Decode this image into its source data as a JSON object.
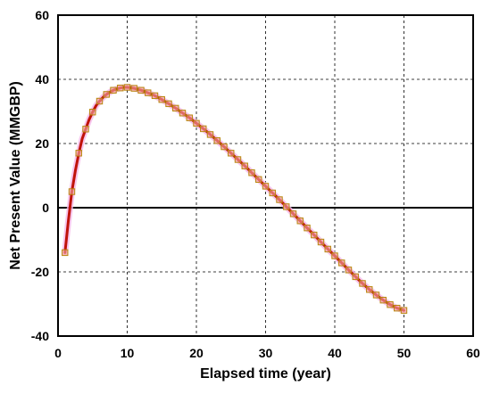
{
  "chart_data": {
    "type": "line",
    "title": "",
    "xlabel": "Elapsed time (year)",
    "ylabel": "Net Present Value (MMGBP)",
    "xlim": [
      0,
      60
    ],
    "ylim": [
      -40,
      60
    ],
    "xticks": [
      0,
      10,
      20,
      30,
      40,
      50,
      60
    ],
    "yticks": [
      -40,
      -20,
      0,
      20,
      40,
      60
    ],
    "grid": true,
    "legend": "none",
    "colors": {
      "line": "#c0120a",
      "marker_edge": "#b8860b",
      "marker_fill": "#f4a6a0",
      "halo": "#f5b8e8",
      "zero_line": "#000000",
      "grid": "#000000"
    },
    "series": [
      {
        "line_x": [
          1,
          1.5,
          2,
          2.5,
          3,
          3.5,
          4,
          4.5,
          5,
          5.5,
          6,
          6.5,
          7,
          7.5,
          8,
          8.5,
          9,
          9.5,
          10,
          10.5,
          11,
          11.5,
          12,
          12.5,
          13,
          14,
          15,
          16,
          17,
          18,
          19,
          20,
          21,
          22,
          23,
          24,
          25,
          26,
          27,
          28,
          29,
          30,
          31,
          32,
          33,
          34,
          35,
          36,
          37,
          38,
          39,
          40,
          41,
          42,
          43,
          44,
          45,
          46,
          47,
          48,
          49,
          50
        ],
        "line_y": [
          -14,
          -4,
          5,
          11.5,
          17,
          21.5,
          24.5,
          27.5,
          29.8,
          31.8,
          33.2,
          34.4,
          35.3,
          36,
          36.6,
          37,
          37.3,
          37.5,
          37.5,
          37.4,
          37.2,
          36.9,
          36.6,
          36.2,
          35.8,
          34.9,
          33.7,
          32.4,
          31,
          29.5,
          28,
          26.3,
          24.6,
          22.8,
          20.9,
          19,
          17,
          15,
          13,
          10.9,
          8.8,
          6.7,
          4.6,
          2.5,
          0.3,
          -1.9,
          -4.1,
          -6.3,
          -8.5,
          -10.7,
          -12.9,
          -15,
          -17.2,
          -19.4,
          -21.5,
          -23.6,
          -25.5,
          -27.2,
          -28.8,
          -30.2,
          -31.3,
          -32
        ],
        "marker_x": [
          1,
          2,
          3,
          4,
          5,
          6,
          7,
          8,
          9,
          10,
          11,
          12,
          13,
          14,
          15,
          16,
          17,
          18,
          19,
          20,
          21,
          22,
          23,
          24,
          25,
          26,
          27,
          28,
          29,
          30,
          31,
          32,
          33,
          34,
          35,
          36,
          37,
          38,
          39,
          40,
          41,
          42,
          43,
          44,
          45,
          46,
          47,
          48,
          49,
          50
        ],
        "marker_y": [
          -14,
          5,
          17,
          24.5,
          29.8,
          33.2,
          35.3,
          36.6,
          37.3,
          37.5,
          37.2,
          36.6,
          35.8,
          34.9,
          33.7,
          32.4,
          31,
          29.5,
          28,
          26.3,
          24.6,
          22.8,
          20.9,
          19,
          17,
          15,
          13,
          10.9,
          8.8,
          6.7,
          4.6,
          2.5,
          0.3,
          -1.9,
          -4.1,
          -6.3,
          -8.5,
          -10.7,
          -12.9,
          -15,
          -17.2,
          -19.4,
          -21.5,
          -23.6,
          -25.5,
          -27.2,
          -28.8,
          -30.2,
          -31.3,
          -32
        ]
      }
    ]
  }
}
